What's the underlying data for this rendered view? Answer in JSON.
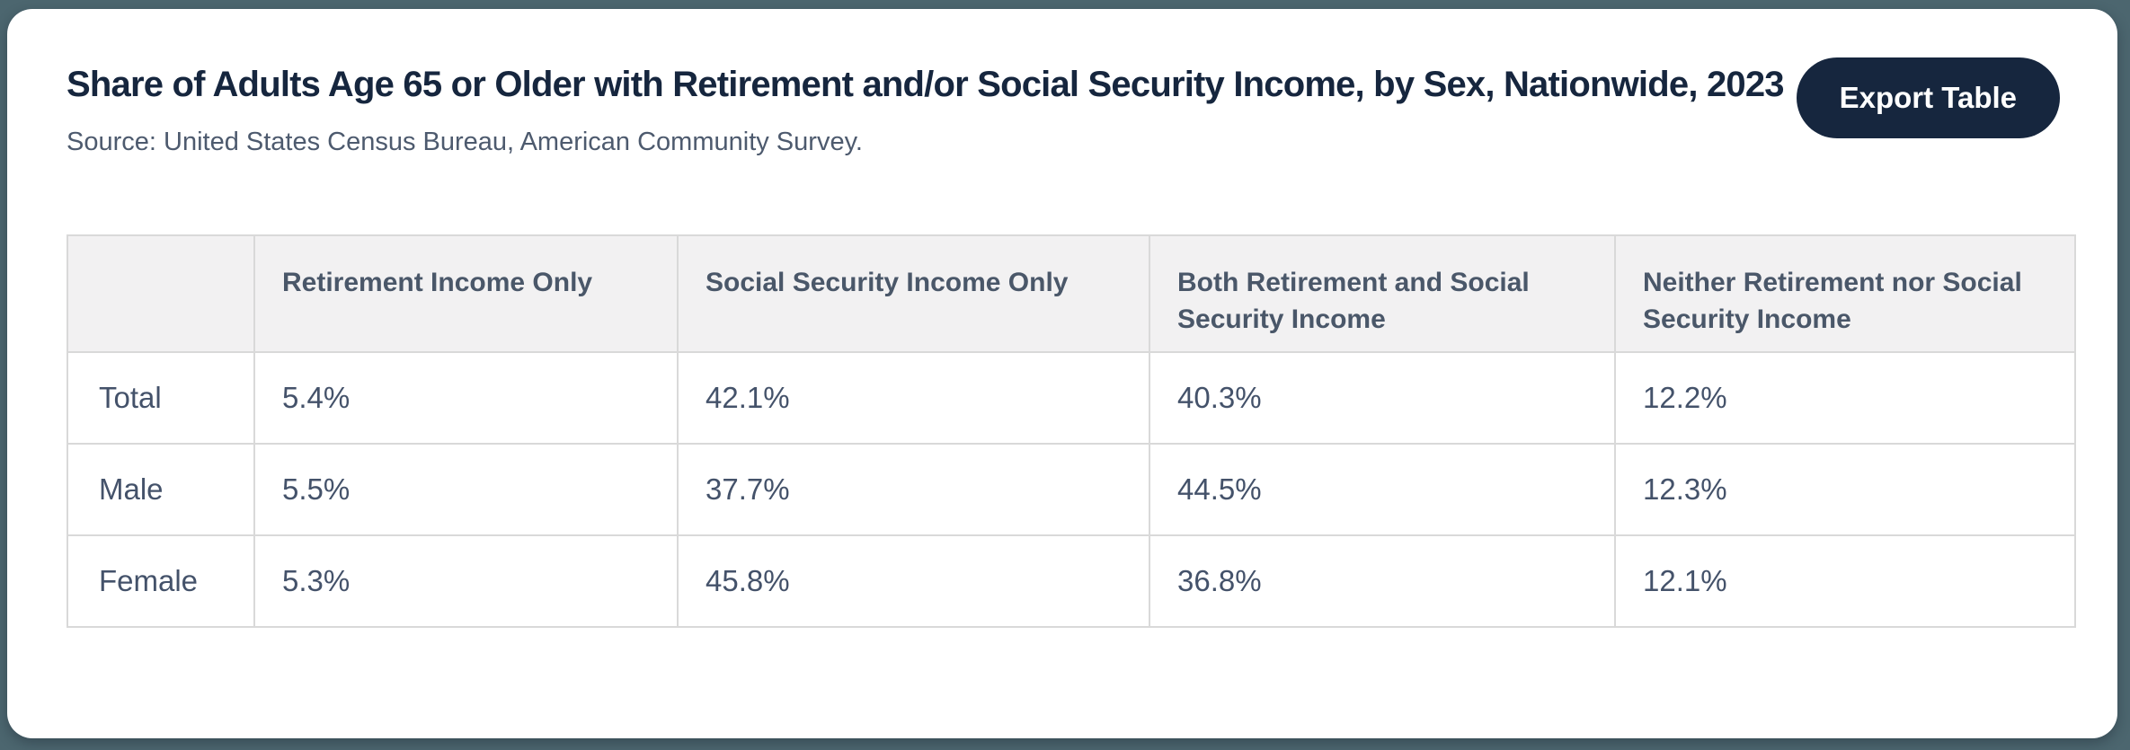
{
  "window": {
    "background_color": "#4c666f",
    "card_color": "#ffffff",
    "accent_color": "#16263e",
    "table_border_color": "#d9d9d9",
    "table_header_bg": "#f2f1f2"
  },
  "toolbar": {
    "export_label": "Export Table"
  },
  "chart_data": {
    "type": "table",
    "title": "Share of Adults Age 65 or Older with Retirement and/or Social Security Income, by Sex, Nationwide, 2023",
    "source": "Source: United States Census Bureau, American Community Survey.",
    "units": "percent",
    "columns": [
      "",
      "Retirement Income Only",
      "Social Security Income Only",
      "Both Retirement and Social Security Income",
      "Neither Retirement nor Social Security Income"
    ],
    "rows": [
      {
        "label": "Total",
        "values": [
          "5.4%",
          "42.1%",
          "40.3%",
          "12.2%"
        ]
      },
      {
        "label": "Male",
        "values": [
          "5.5%",
          "37.7%",
          "44.5%",
          "12.3%"
        ]
      },
      {
        "label": "Female",
        "values": [
          "5.3%",
          "45.8%",
          "36.8%",
          "12.1%"
        ]
      }
    ]
  }
}
